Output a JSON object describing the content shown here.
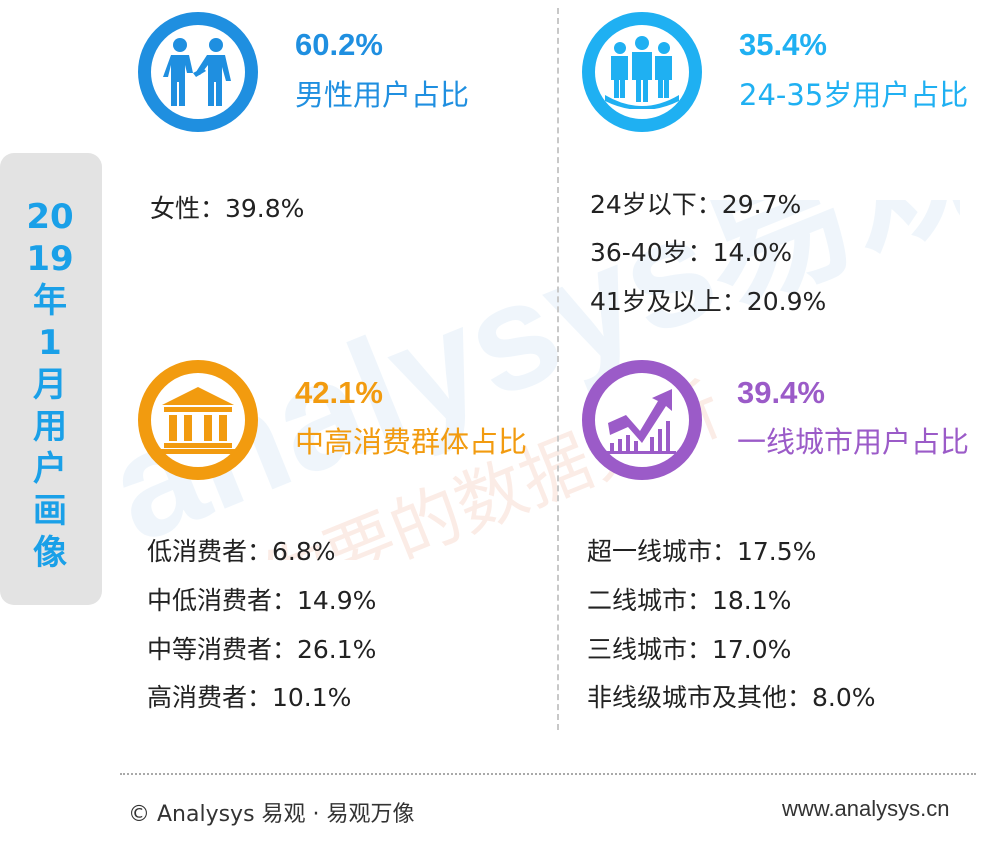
{
  "side_title": "2019年1月用户画像",
  "watermark": {
    "brand": "analysys易观",
    "slogan": "你要的数据分析"
  },
  "colors": {
    "blue": "#1f8fe0",
    "cyan": "#1fb0f2",
    "orange": "#f29b0f",
    "purple": "#9b5bc8",
    "side_text": "#1aa0e8"
  },
  "blocks": {
    "gender": {
      "icon": "people-handshake-icon",
      "value": "60.2%",
      "label": "男性用户占比",
      "details": [
        "女性：39.8%"
      ]
    },
    "age": {
      "icon": "group-people-icon",
      "value": "35.4%",
      "label": "24-35岁用户占比",
      "details": [
        "24岁以下：29.7%",
        "36-40岁：14.0%",
        "41岁及以上：20.9%"
      ]
    },
    "consumption": {
      "icon": "bank-building-icon",
      "value": "42.1%",
      "label": "中高消费群体占比",
      "details": [
        "低消费者：6.8%",
        "中低消费者：14.9%",
        "中等消费者：26.1%",
        "高消费者：10.1%"
      ]
    },
    "city": {
      "icon": "growth-chart-icon",
      "value": "39.4%",
      "label": "一线城市用户占比",
      "details": [
        "超一线城市：17.5%",
        "二线城市：18.1%",
        "三线城市：17.0%",
        "非线级城市及其他：8.0%"
      ]
    }
  },
  "footer": {
    "left": "© Analysys 易观 · 易观万像",
    "right": "www.analysys.cn"
  }
}
